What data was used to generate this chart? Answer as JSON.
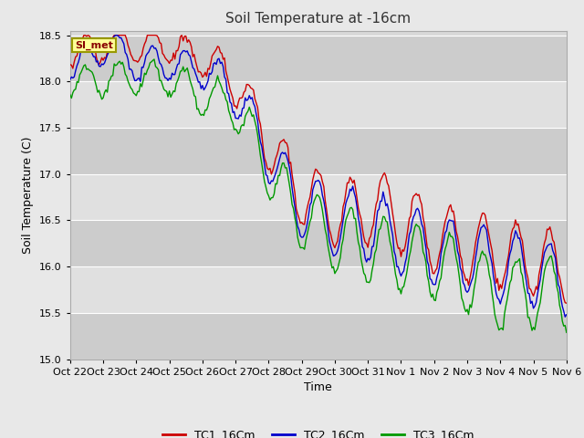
{
  "title": "Soil Temperature at -16cm",
  "xlabel": "Time",
  "ylabel": "Soil Temperature (C)",
  "ylim": [
    15.0,
    18.5
  ],
  "yticks": [
    15.0,
    15.5,
    16.0,
    16.5,
    17.0,
    17.5,
    18.0,
    18.5
  ],
  "x_labels": [
    "Oct 22",
    "Oct 23",
    "Oct 24",
    "Oct 25",
    "Oct 26",
    "Oct 27",
    "Oct 28",
    "Oct 29",
    "Oct 30",
    "Oct 31",
    "Nov 1",
    "Nov 2",
    "Nov 3",
    "Nov 4",
    "Nov 5",
    "Nov 6"
  ],
  "legend_labels": [
    "TC1_16Cm",
    "TC2_16Cm",
    "TC3_16Cm"
  ],
  "legend_colors": [
    "#cc0000",
    "#0000cc",
    "#009900"
  ],
  "line_colors": [
    "#cc0000",
    "#0000cc",
    "#009900"
  ],
  "annotation_text": "SI_met",
  "annotation_bg": "#ffff99",
  "annotation_border": "#999900",
  "fig_bg": "#e8e8e8",
  "plot_bg": "#d8d8d8",
  "grid_color": "#ffffff",
  "title_fontsize": 11,
  "axis_fontsize": 9,
  "tick_fontsize": 8
}
